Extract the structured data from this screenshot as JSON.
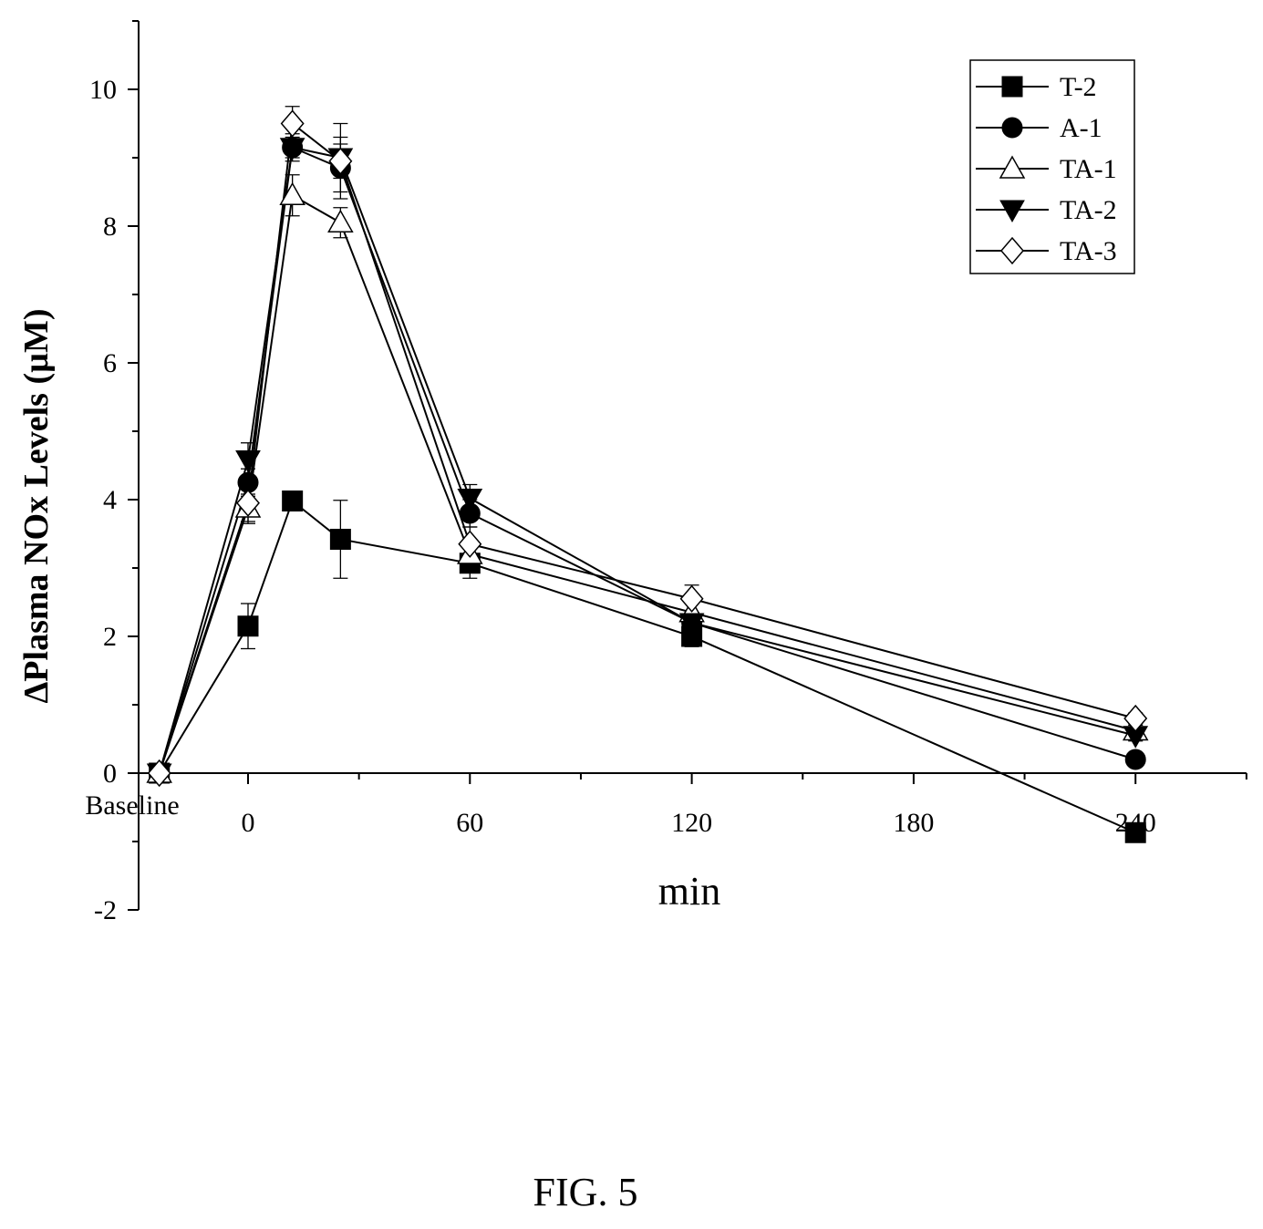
{
  "figure": {
    "caption": "FIG. 5"
  },
  "chart_data": {
    "type": "line",
    "xlabel": "min",
    "ylabel": "ΔPlasma NOx Levels (µM)",
    "x": [
      -24,
      0,
      12,
      25,
      60,
      120,
      240
    ],
    "xlim": [
      -24,
      270
    ],
    "ylim": [
      -2,
      11
    ],
    "x_tick_labels": [
      {
        "value": -24,
        "label": "Baseline"
      },
      {
        "value": 0,
        "label": "0"
      },
      {
        "value": 60,
        "label": "60"
      },
      {
        "value": 120,
        "label": "120"
      },
      {
        "value": 180,
        "label": "180"
      },
      {
        "value": 240,
        "label": "240"
      }
    ],
    "y_ticks": [
      -2,
      0,
      2,
      4,
      6,
      8,
      10
    ],
    "grid": false,
    "legend_position": "top-right",
    "series": [
      {
        "name": "T-2",
        "marker": "square-filled",
        "values": [
          0,
          2.15,
          3.98,
          3.42,
          3.07,
          2.0,
          -0.87
        ],
        "errors": [
          0,
          0.33,
          0.1,
          0.57,
          0.22,
          0.15,
          0.08
        ]
      },
      {
        "name": "A-1",
        "marker": "circle-filled",
        "values": [
          0,
          4.25,
          9.15,
          8.85,
          3.8,
          2.2,
          0.2
        ],
        "errors": [
          0,
          0.2,
          0.15,
          0.35,
          0.2,
          0.15,
          0.08
        ]
      },
      {
        "name": "TA-1",
        "marker": "triangle-up-open",
        "values": [
          0,
          3.88,
          8.45,
          8.05,
          3.2,
          2.35,
          0.62
        ],
        "errors": [
          0,
          0.2,
          0.3,
          0.22,
          0.2,
          0.15,
          0.08
        ]
      },
      {
        "name": "TA-2",
        "marker": "triangle-down-filled",
        "values": [
          0,
          4.58,
          9.15,
          9.0,
          4.02,
          2.2,
          0.55
        ],
        "errors": [
          0,
          0.25,
          0.2,
          0.3,
          0.2,
          0.15,
          0.08
        ]
      },
      {
        "name": "TA-3",
        "marker": "diamond-open",
        "values": [
          0,
          3.95,
          9.5,
          8.95,
          3.35,
          2.55,
          0.8
        ],
        "errors": [
          0,
          0.3,
          0.25,
          0.55,
          0.25,
          0.2,
          0.08
        ]
      }
    ]
  }
}
